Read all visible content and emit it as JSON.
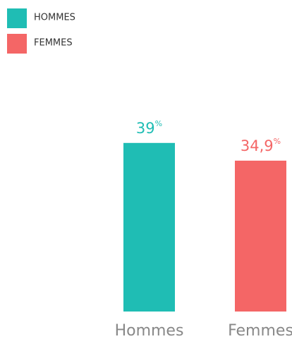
{
  "chart_data": {
    "type": "bar",
    "categories": [
      "Hommes",
      "Femmes"
    ],
    "series": [
      {
        "name": "HOMMES",
        "color": "#1fbdb4",
        "values": [
          39,
          null
        ],
        "value_labels": [
          "39%",
          null
        ]
      },
      {
        "name": "FEMMES",
        "color": "#f46666",
        "values": [
          null,
          34.9
        ],
        "value_labels": [
          null,
          "34,9%"
        ]
      }
    ],
    "ylim": [
      0,
      45
    ],
    "legend": "top-left"
  }
}
